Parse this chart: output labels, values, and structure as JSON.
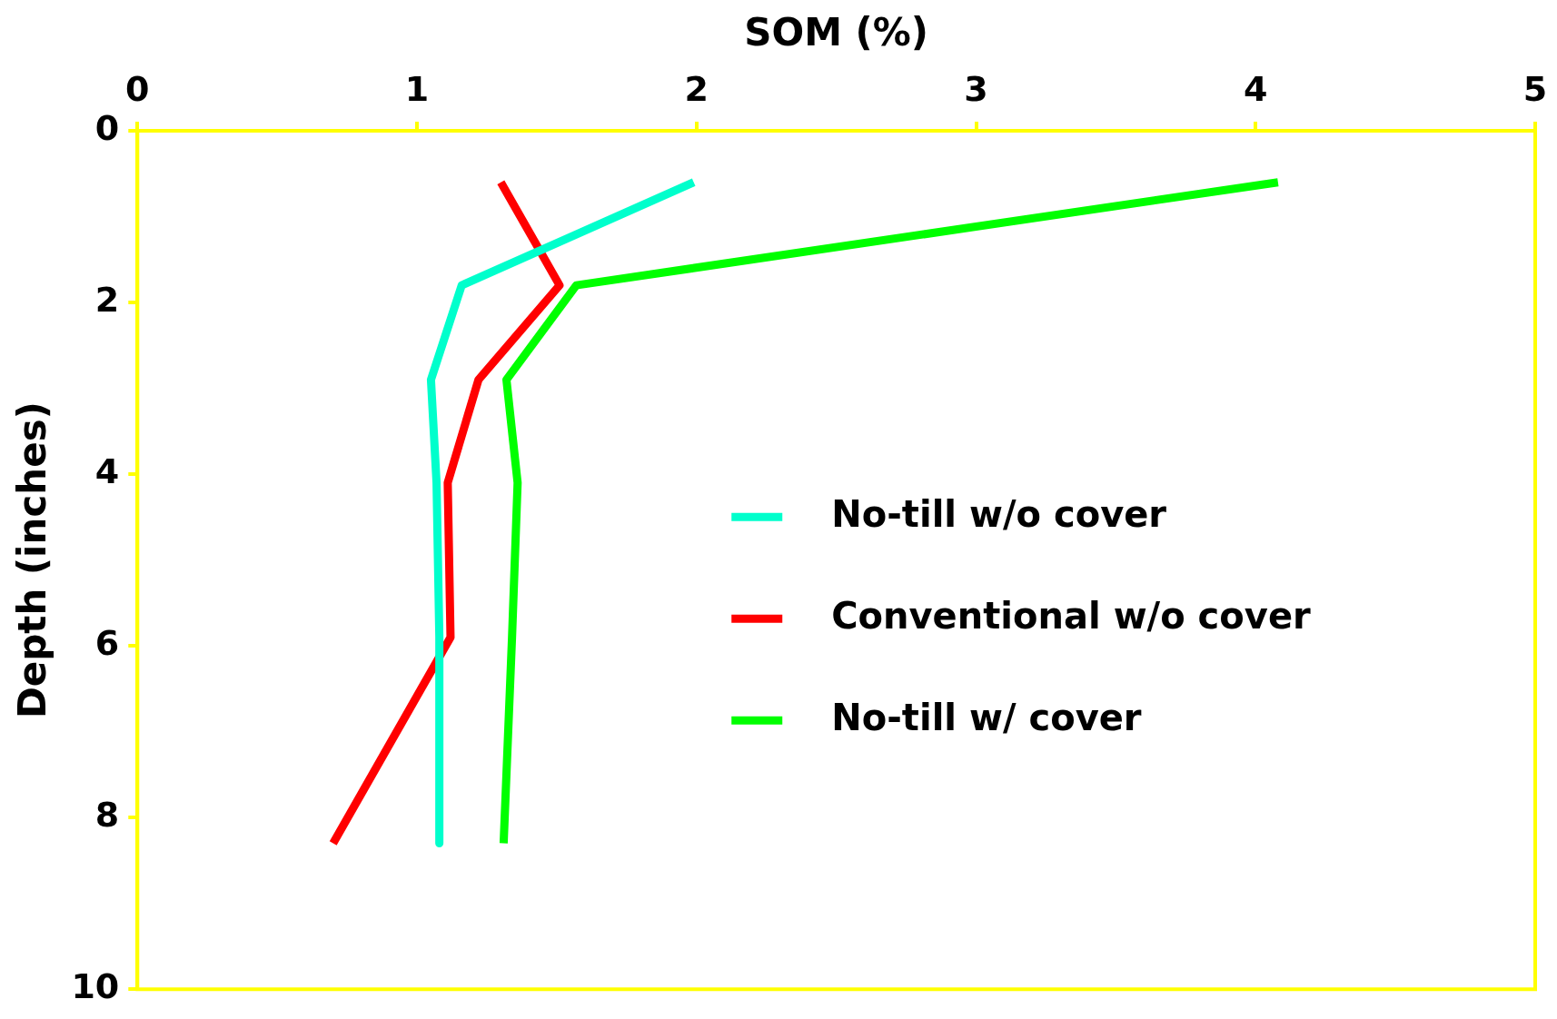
{
  "chart_data": {
    "type": "line",
    "xlabel": "SOM (%)",
    "ylabel": "Depth (inches)",
    "xlim": [
      0,
      5
    ],
    "xticks": [
      0,
      1,
      2,
      3,
      4,
      5
    ],
    "ylim": [
      10,
      0
    ],
    "yticks": [
      0,
      2,
      4,
      6,
      8,
      10
    ],
    "grid": false,
    "legend": "right",
    "marker": "none",
    "line_style": "solid",
    "series": [
      {
        "name": "No-till w/o cover",
        "color": "#00ffcc",
        "x": [
          1.99,
          1.16,
          1.05,
          1.07,
          1.08,
          1.08
        ],
        "values": [
          0.6,
          1.8,
          2.9,
          4.1,
          5.9,
          8.3
        ]
      },
      {
        "name": "Conventional w/o cover",
        "color": "#ff0000",
        "x": [
          1.3,
          1.51,
          1.22,
          1.11,
          1.12,
          0.7
        ],
        "values": [
          0.6,
          1.8,
          2.9,
          4.1,
          5.9,
          8.3
        ]
      },
      {
        "name": "No-till w/ cover",
        "color": "#00ff00",
        "x": [
          4.08,
          1.57,
          1.32,
          1.36,
          1.34,
          1.31
        ],
        "values": [
          0.6,
          1.8,
          2.9,
          4.1,
          5.9,
          8.3
        ]
      }
    ]
  }
}
